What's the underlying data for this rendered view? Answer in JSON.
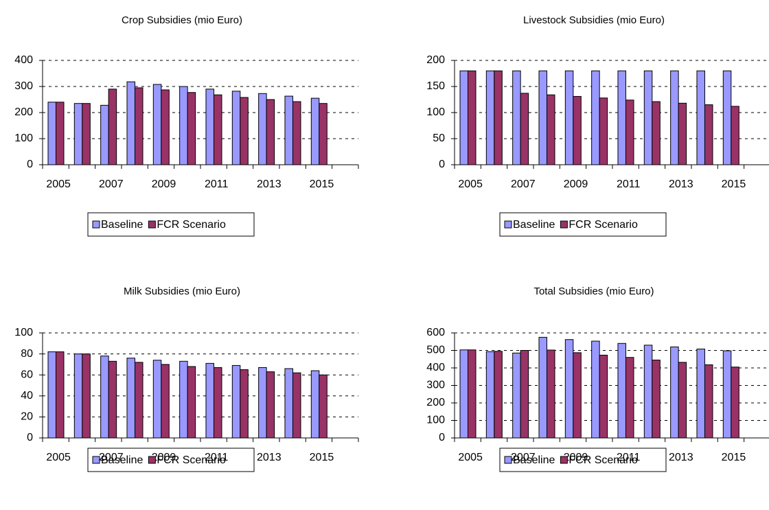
{
  "chart_data": [
    {
      "type": "bar",
      "title": "Crop Subsidies (mio Euro)",
      "categories": [
        "2005",
        null,
        "2007",
        null,
        "2009",
        null,
        "2011",
        null,
        "2013",
        null,
        "2015",
        null
      ],
      "series": [
        {
          "name": "Baseline",
          "color": "#9999ff",
          "values": [
            240,
            235,
            228,
            318,
            308,
            300,
            290,
            282,
            273,
            263,
            255,
            null
          ]
        },
        {
          "name": "FCR Scenario",
          "color": "#993366",
          "values": [
            240,
            235,
            290,
            295,
            287,
            277,
            268,
            258,
            250,
            242,
            235,
            null
          ]
        }
      ],
      "ylim": [
        0,
        400
      ],
      "yticks": [
        0,
        100,
        200,
        300,
        400
      ],
      "grid": true,
      "legend": "bottom"
    },
    {
      "type": "bar",
      "title": "Livestock Subsidies (mio Euro)",
      "categories": [
        "2005",
        null,
        "2007",
        null,
        "2009",
        null,
        "2011",
        null,
        "2013",
        null,
        "2015",
        null
      ],
      "series": [
        {
          "name": "Baseline",
          "color": "#9999ff",
          "values": [
            180,
            180,
            180,
            180,
            180,
            180,
            180,
            180,
            180,
            180,
            180,
            null
          ]
        },
        {
          "name": "FCR Scenario",
          "color": "#993366",
          "values": [
            180,
            180,
            137,
            134,
            131,
            128,
            124,
            121,
            118,
            115,
            112,
            null
          ]
        }
      ],
      "ylim": [
        0,
        200
      ],
      "yticks": [
        0,
        50,
        100,
        150,
        200
      ],
      "grid": true,
      "legend": "bottom"
    },
    {
      "type": "bar",
      "title": "Milk Subsidies (mio Euro)",
      "categories": [
        "2005",
        null,
        "2007",
        null,
        "2009",
        null,
        "2011",
        null,
        "2013",
        null,
        "2015",
        null
      ],
      "series": [
        {
          "name": "Baseline",
          "color": "#9999ff",
          "values": [
            82,
            80,
            78,
            76,
            74,
            73,
            71,
            69,
            67,
            66,
            64,
            null
          ]
        },
        {
          "name": "FCR Scenario",
          "color": "#993366",
          "values": [
            82,
            80,
            73,
            72,
            70,
            68,
            67,
            65,
            63,
            62,
            60,
            null
          ]
        }
      ],
      "ylim": [
        0,
        100
      ],
      "yticks": [
        0,
        20,
        40,
        60,
        80,
        100
      ],
      "grid": true,
      "legend": "bottom"
    },
    {
      "type": "bar",
      "title": "Total Subsidies (mio Euro)",
      "categories": [
        "2005",
        null,
        "2007",
        null,
        "2009",
        null,
        "2011",
        null,
        "2013",
        null,
        "2015",
        null
      ],
      "series": [
        {
          "name": "Baseline",
          "color": "#9999ff",
          "values": [
            503,
            493,
            485,
            575,
            562,
            553,
            540,
            530,
            520,
            508,
            498,
            null
          ]
        },
        {
          "name": "FCR Scenario",
          "color": "#993366",
          "values": [
            503,
            495,
            500,
            502,
            487,
            473,
            460,
            445,
            432,
            418,
            405,
            null
          ]
        }
      ],
      "ylim": [
        0,
        600
      ],
      "yticks": [
        0,
        100,
        200,
        300,
        400,
        500,
        600
      ],
      "grid": true,
      "legend": "bottom"
    }
  ]
}
